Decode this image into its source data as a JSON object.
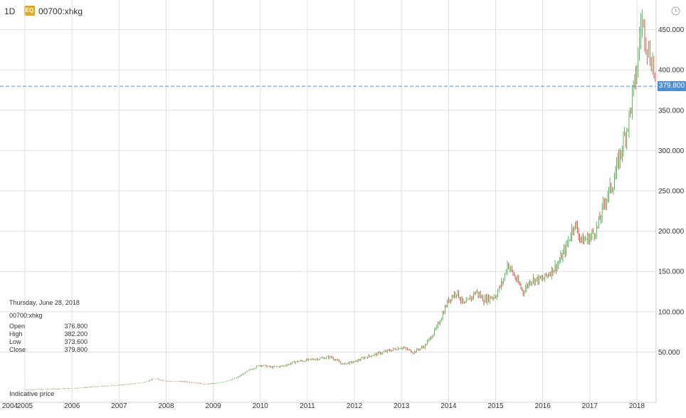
{
  "toolbar": {
    "interval": "1D",
    "badge": "EQ",
    "symbol": "00700:xhkg",
    "clock_icon": "clock-icon"
  },
  "crosshair": {
    "date": "Thursday, June 28, 2018",
    "symbol": "00700:xhkg",
    "open_label": "Open",
    "open_value": "376.800",
    "high_label": "High",
    "high_value": "382.200",
    "low_label": "Low",
    "low_value": "373.600",
    "close_label": "Close",
    "close_value": "379.800"
  },
  "footer": {
    "indicative": "Indicative price"
  },
  "last_price": "379.800",
  "colors": {
    "up": "#33aa33",
    "down": "#dd3322",
    "price_line": "#4a90d9",
    "grid": "#e0e0e0",
    "badge": "#e6a817"
  },
  "chart_data": {
    "type": "candlestick",
    "y_ticks": [
      "50.000",
      "100.000",
      "150.000",
      "200.000",
      "250.000",
      "300.000",
      "350.000",
      "400.000",
      "450.000"
    ],
    "x_ticks": [
      "2004",
      "2005",
      "2006",
      "2007",
      "2008",
      "2009",
      "2010",
      "2011",
      "2012",
      "2013",
      "2014",
      "2015",
      "2016",
      "2017",
      "2018"
    ],
    "ylim": [
      0,
      470
    ],
    "last_close": 379.8,
    "series": [
      {
        "x": [
          "2005-01",
          "2005-07",
          "2006-01",
          "2006-07",
          "2007-01",
          "2007-07",
          "2007-10",
          "2008-01",
          "2008-07",
          "2008-11",
          "2009-03",
          "2009-07",
          "2009-10",
          "2010-01",
          "2010-04",
          "2010-07",
          "2010-10",
          "2011-01",
          "2011-04",
          "2011-07",
          "2011-10",
          "2012-01",
          "2012-04",
          "2012-07",
          "2012-10",
          "2013-01",
          "2013-04",
          "2013-07",
          "2013-10",
          "2014-01",
          "2014-03",
          "2014-05",
          "2014-08",
          "2014-10",
          "2015-01",
          "2015-03",
          "2015-04",
          "2015-06",
          "2015-08",
          "2015-10",
          "2016-01",
          "2016-03",
          "2016-05",
          "2016-07",
          "2016-09",
          "2016-11",
          "2017-01",
          "2017-03",
          "2017-05",
          "2017-07",
          "2017-09",
          "2017-11",
          "2018-01",
          "2018-02",
          "2018-03",
          "2018-04",
          "2018-05",
          "2018-06"
        ],
        "values": [
          3,
          4,
          5,
          7,
          9,
          12,
          17,
          14,
          13,
          10,
          12,
          18,
          27,
          34,
          31,
          33,
          38,
          40,
          42,
          44,
          35,
          38,
          44,
          48,
          52,
          56,
          50,
          58,
          80,
          115,
          125,
          108,
          125,
          115,
          120,
          140,
          160,
          142,
          125,
          140,
          140,
          150,
          160,
          180,
          210,
          188,
          192,
          205,
          240,
          260,
          300,
          340,
          400,
          460,
          450,
          420,
          410,
          380
        ]
      }
    ]
  }
}
